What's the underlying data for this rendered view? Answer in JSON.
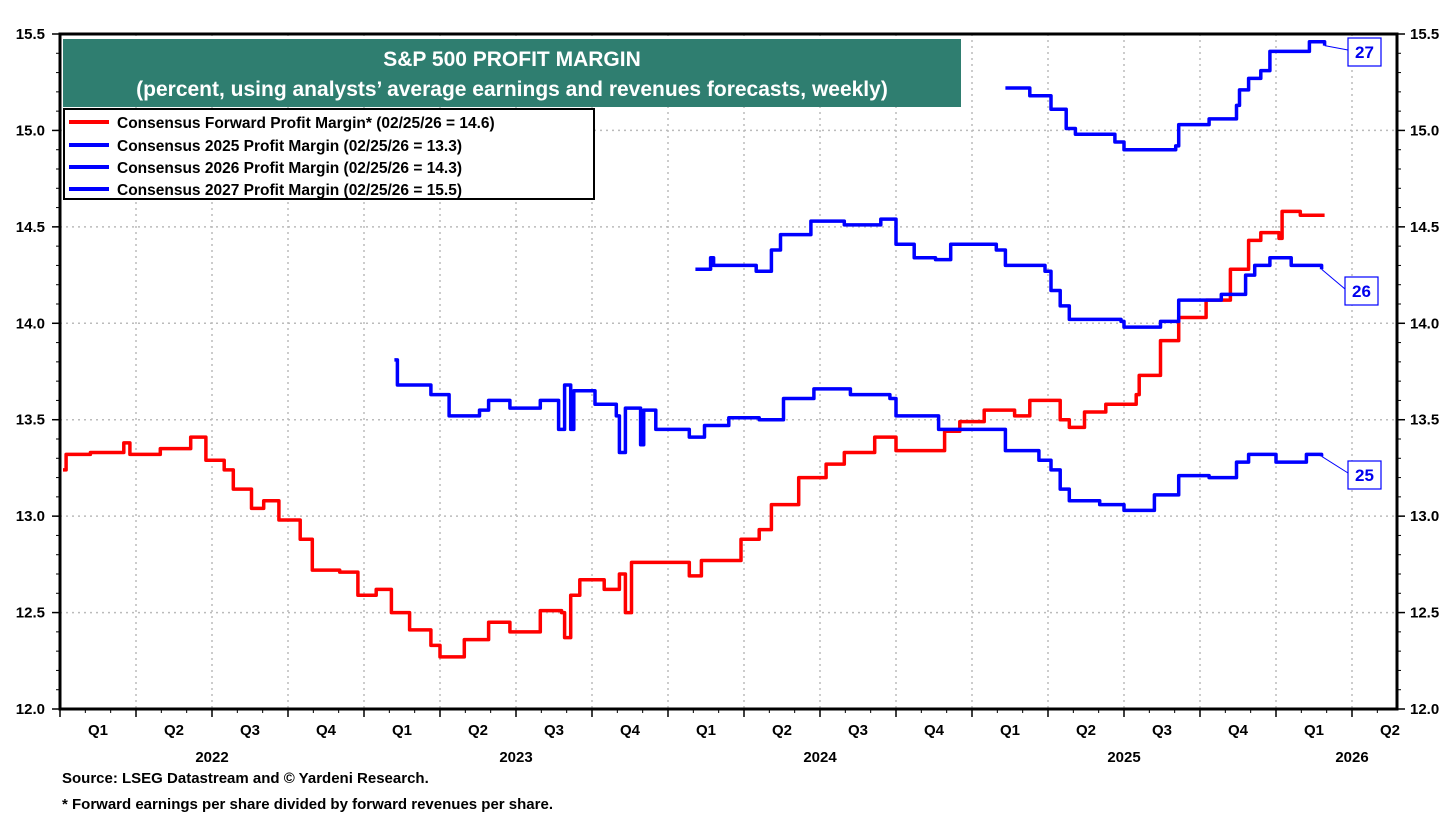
{
  "chart_data": {
    "type": "line",
    "title": "S&P 500 PROFIT MARGIN",
    "subtitle": "(percent, using analysts’ average earnings and revenues forecasts, weekly)",
    "ylim": [
      12.0,
      15.5
    ],
    "xlim": [
      2022.0,
      2026.4
    ],
    "y_ticks": [
      "12.0",
      "12.5",
      "13.0",
      "13.5",
      "14.0",
      "14.5",
      "15.0",
      "15.5"
    ],
    "x_quarter_labels": [
      "Q1",
      "Q2",
      "Q3",
      "Q4"
    ],
    "x_last_quarter_labels": [
      "Q1",
      "Q2"
    ],
    "x_years": [
      "2022",
      "2023",
      "2024",
      "2025",
      "2026"
    ],
    "grid": true,
    "legend_position": "top-left",
    "series": [
      {
        "name": "Consensus Forward Profit Margin* (02/25/26 = 14.6)",
        "color": "#ff0000",
        "tag": "",
        "points": [
          [
            2022.01,
            13.24
          ],
          [
            2022.02,
            13.32
          ],
          [
            2022.1,
            13.33
          ],
          [
            2022.21,
            13.38
          ],
          [
            2022.23,
            13.32
          ],
          [
            2022.33,
            13.35
          ],
          [
            2022.43,
            13.41
          ],
          [
            2022.48,
            13.29
          ],
          [
            2022.54,
            13.24
          ],
          [
            2022.57,
            13.14
          ],
          [
            2022.63,
            13.04
          ],
          [
            2022.67,
            13.08
          ],
          [
            2022.72,
            12.98
          ],
          [
            2022.79,
            12.88
          ],
          [
            2022.83,
            12.72
          ],
          [
            2022.92,
            12.71
          ],
          [
            2022.98,
            12.59
          ],
          [
            2023.04,
            12.62
          ],
          [
            2023.09,
            12.5
          ],
          [
            2023.15,
            12.41
          ],
          [
            2023.22,
            12.33
          ],
          [
            2023.25,
            12.27
          ],
          [
            2023.33,
            12.36
          ],
          [
            2023.41,
            12.45
          ],
          [
            2023.48,
            12.4
          ],
          [
            2023.58,
            12.51
          ],
          [
            2023.65,
            12.5
          ],
          [
            2023.66,
            12.37
          ],
          [
            2023.68,
            12.59
          ],
          [
            2023.71,
            12.67
          ],
          [
            2023.79,
            12.62
          ],
          [
            2023.84,
            12.7
          ],
          [
            2023.86,
            12.5
          ],
          [
            2023.88,
            12.76
          ],
          [
            2023.99,
            12.76
          ],
          [
            2024.07,
            12.69
          ],
          [
            2024.11,
            12.77
          ],
          [
            2024.24,
            12.88
          ],
          [
            2024.3,
            12.93
          ],
          [
            2024.34,
            13.06
          ],
          [
            2024.43,
            13.2
          ],
          [
            2024.52,
            13.27
          ],
          [
            2024.58,
            13.33
          ],
          [
            2024.68,
            13.41
          ],
          [
            2024.75,
            13.34
          ],
          [
            2024.91,
            13.44
          ],
          [
            2024.96,
            13.49
          ],
          [
            2025.04,
            13.55
          ],
          [
            2025.14,
            13.52
          ],
          [
            2025.19,
            13.6
          ],
          [
            2025.29,
            13.5
          ],
          [
            2025.32,
            13.46
          ],
          [
            2025.37,
            13.54
          ],
          [
            2025.44,
            13.58
          ],
          [
            2025.54,
            13.63
          ],
          [
            2025.55,
            13.73
          ],
          [
            2025.62,
            13.91
          ],
          [
            2025.68,
            14.03
          ],
          [
            2025.77,
            14.12
          ],
          [
            2025.85,
            14.28
          ],
          [
            2025.91,
            14.43
          ],
          [
            2025.95,
            14.47
          ],
          [
            2026.01,
            14.44
          ],
          [
            2026.02,
            14.58
          ],
          [
            2026.08,
            14.56
          ],
          [
            2026.16,
            14.56
          ]
        ]
      },
      {
        "name": "Consensus 2025 Profit Margin (02/25/26 = 13.3)",
        "color": "#0000ff",
        "tag": "25",
        "points": [
          [
            2023.1,
            13.81
          ],
          [
            2023.11,
            13.68
          ],
          [
            2023.18,
            13.68
          ],
          [
            2023.22,
            13.63
          ],
          [
            2023.28,
            13.52
          ],
          [
            2023.33,
            13.52
          ],
          [
            2023.38,
            13.55
          ],
          [
            2023.41,
            13.6
          ],
          [
            2023.48,
            13.56
          ],
          [
            2023.58,
            13.6
          ],
          [
            2023.64,
            13.45
          ],
          [
            2023.66,
            13.68
          ],
          [
            2023.68,
            13.45
          ],
          [
            2023.69,
            13.65
          ],
          [
            2023.76,
            13.58
          ],
          [
            2023.83,
            13.52
          ],
          [
            2023.84,
            13.33
          ],
          [
            2023.86,
            13.56
          ],
          [
            2023.91,
            13.37
          ],
          [
            2023.92,
            13.55
          ],
          [
            2023.96,
            13.45
          ],
          [
            2024.07,
            13.41
          ],
          [
            2024.12,
            13.47
          ],
          [
            2024.2,
            13.51
          ],
          [
            2024.3,
            13.5
          ],
          [
            2024.38,
            13.61
          ],
          [
            2024.48,
            13.66
          ],
          [
            2024.6,
            13.63
          ],
          [
            2024.73,
            13.61
          ],
          [
            2024.75,
            13.52
          ],
          [
            2024.89,
            13.45
          ],
          [
            2025.04,
            13.45
          ],
          [
            2025.11,
            13.34
          ],
          [
            2025.22,
            13.29
          ],
          [
            2025.26,
            13.24
          ],
          [
            2025.29,
            13.14
          ],
          [
            2025.32,
            13.08
          ],
          [
            2025.42,
            13.06
          ],
          [
            2025.5,
            13.03
          ],
          [
            2025.6,
            13.11
          ],
          [
            2025.68,
            13.21
          ],
          [
            2025.78,
            13.2
          ],
          [
            2025.87,
            13.28
          ],
          [
            2025.91,
            13.32
          ],
          [
            2026.0,
            13.28
          ],
          [
            2026.1,
            13.32
          ],
          [
            2026.15,
            13.31
          ]
        ]
      },
      {
        "name": "Consensus 2026 Profit Margin (02/25/26 = 14.3)",
        "color": "#0000ff",
        "tag": "26",
        "points": [
          [
            2024.09,
            14.28
          ],
          [
            2024.14,
            14.34
          ],
          [
            2024.15,
            14.3
          ],
          [
            2024.29,
            14.27
          ],
          [
            2024.34,
            14.38
          ],
          [
            2024.37,
            14.46
          ],
          [
            2024.47,
            14.53
          ],
          [
            2024.58,
            14.51
          ],
          [
            2024.7,
            14.54
          ],
          [
            2024.75,
            14.41
          ],
          [
            2024.81,
            14.34
          ],
          [
            2024.88,
            14.33
          ],
          [
            2024.93,
            14.41
          ],
          [
            2025.08,
            14.38
          ],
          [
            2025.11,
            14.3
          ],
          [
            2025.24,
            14.27
          ],
          [
            2025.26,
            14.17
          ],
          [
            2025.29,
            14.09
          ],
          [
            2025.32,
            14.02
          ],
          [
            2025.49,
            14.01
          ],
          [
            2025.5,
            13.98
          ],
          [
            2025.62,
            14.01
          ],
          [
            2025.68,
            14.12
          ],
          [
            2025.82,
            14.15
          ],
          [
            2025.9,
            14.25
          ],
          [
            2025.93,
            14.3
          ],
          [
            2025.98,
            14.34
          ],
          [
            2026.05,
            14.3
          ],
          [
            2026.15,
            14.28
          ]
        ]
      },
      {
        "name": "Consensus 2027 Profit Margin (02/25/26 = 15.5)",
        "color": "#0000ff",
        "tag": "27",
        "points": [
          [
            2025.11,
            15.22
          ],
          [
            2025.19,
            15.18
          ],
          [
            2025.26,
            15.11
          ],
          [
            2025.31,
            15.01
          ],
          [
            2025.34,
            14.98
          ],
          [
            2025.47,
            14.94
          ],
          [
            2025.5,
            14.9
          ],
          [
            2025.67,
            14.92
          ],
          [
            2025.68,
            15.03
          ],
          [
            2025.78,
            15.06
          ],
          [
            2025.87,
            15.13
          ],
          [
            2025.88,
            15.21
          ],
          [
            2025.91,
            15.27
          ],
          [
            2025.95,
            15.31
          ],
          [
            2025.98,
            15.41
          ],
          [
            2026.08,
            15.41
          ],
          [
            2026.11,
            15.46
          ],
          [
            2026.16,
            15.44
          ]
        ]
      }
    ],
    "title_bg_color": "#2f7e70",
    "footnotes": [
      "Source: LSEG Datastream and © Yardeni Research.",
      "* Forward earnings per share divided by forward revenues per share."
    ]
  }
}
